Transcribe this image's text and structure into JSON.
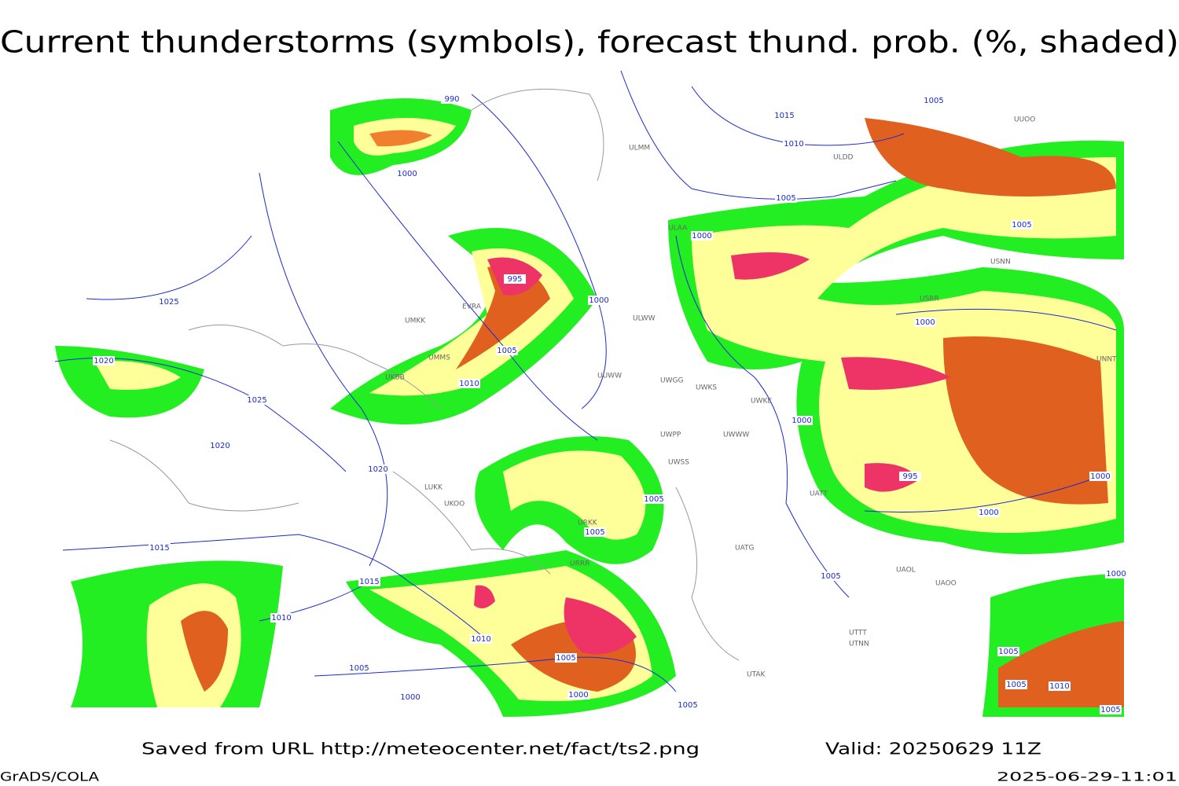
{
  "header": {
    "title": "Current thunderstorms (symbols), forecast thund. prob. (%, shaded)"
  },
  "map": {
    "isobar_labels": [
      990,
      1015,
      1005,
      1010,
      1000,
      1005,
      1005,
      1000,
      995,
      1025,
      1000,
      1000,
      1005,
      1020,
      1010,
      1025,
      1000,
      1020,
      1020,
      995,
      1000,
      1005,
      1000,
      1005,
      1015,
      1005,
      1015,
      1000,
      1010,
      1010,
      1005,
      1005,
      1005,
      1005,
      1010,
      1000,
      1000,
      1005,
      1005
    ],
    "stations": [
      "ULMM",
      "ULDD",
      "UUOO",
      "ULAA",
      "UMMS",
      "EVRA",
      "UMKK",
      "UKBB",
      "UUWW",
      "ULWW",
      "UWGG",
      "UWKS",
      "UWKE",
      "UWPP",
      "UWWW",
      "UWSS",
      "UATT",
      "URKK",
      "UKOO",
      "LUKK",
      "URRR",
      "UATG",
      "UTTT",
      "UTNN",
      "UAOL",
      "UAOO",
      "USRR",
      "USNN",
      "UNNT",
      "UTAK"
    ]
  },
  "footer": {
    "source": "Saved from URL http://meteocenter.net/fact/ts2.png",
    "valid": "Valid: 20250629 11Z",
    "software": "GrADS/COLA",
    "timestamp": "2025-06-29-11:01"
  }
}
